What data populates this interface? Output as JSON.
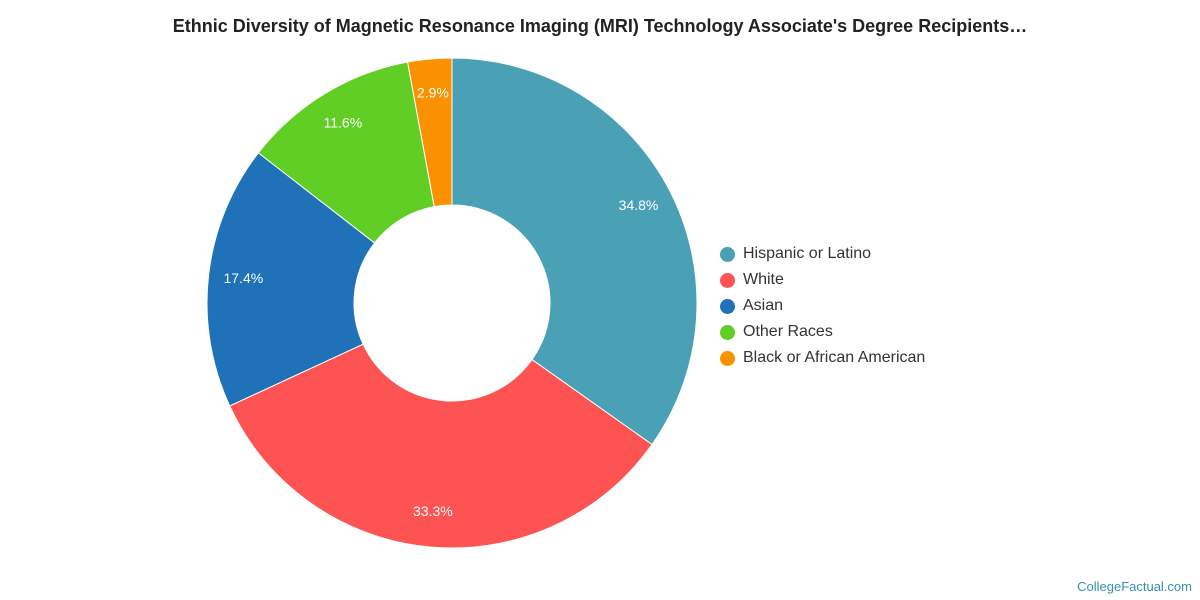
{
  "chart_data": {
    "type": "pie",
    "title": "Ethnic Diversity of Magnetic Resonance Imaging (MRI) Technology Associate's Degree Recipients…",
    "legend_position": "right",
    "categories": [
      "Hispanic or Latino",
      "White",
      "Asian",
      "Other Races",
      "Black or African American"
    ],
    "values": [
      34.8,
      33.3,
      17.4,
      11.6,
      2.9
    ],
    "value_labels": [
      "34.8%",
      "33.3%",
      "17.4%",
      "11.6%",
      "2.9%"
    ],
    "colors": [
      "#4aa0b5",
      "#fe5353",
      "#1f71b8",
      "#60ce25",
      "#fa9100"
    ]
  },
  "footer": {
    "credit": "CollegeFactual.com"
  }
}
